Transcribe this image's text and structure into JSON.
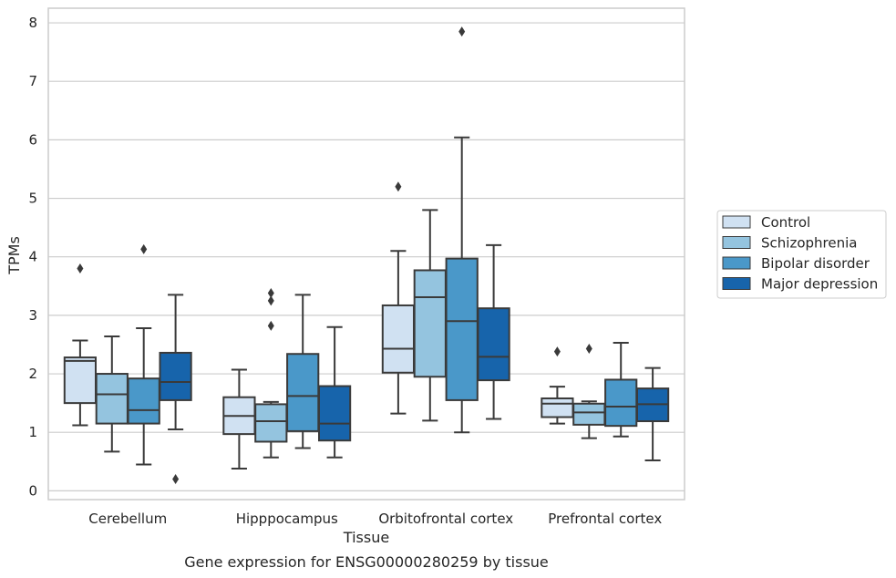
{
  "caption": "Gene expression for ENSG00000280259 by tissue",
  "colors": {
    "Control": "#d0e1f2",
    "Schizophrenia": "#94c4df",
    "Bipolar disorder": "#4a98c9",
    "Major depression": "#1764ab",
    "box_edge": "#3a3a3a",
    "grid": "#cccccc",
    "frame": "#cccccc"
  },
  "chart_data": {
    "type": "box",
    "xlabel": "Tissue",
    "ylabel": "TPMs",
    "ylim": [
      -0.15,
      8.25
    ],
    "yticks": [
      0,
      1,
      2,
      3,
      4,
      5,
      6,
      7,
      8
    ],
    "grid": "horizontal",
    "legend_position": "right",
    "categories": [
      "Cerebellum",
      "Hipppocampus",
      "Orbitofrontal cortex",
      "Prefrontal cortex"
    ],
    "series": [
      {
        "name": "Control",
        "boxes": [
          {
            "whislo": 1.12,
            "q1": 1.5,
            "med": 2.22,
            "q3": 2.28,
            "whishi": 2.57,
            "fliers": [
              3.8
            ]
          },
          {
            "whislo": 0.38,
            "q1": 0.97,
            "med": 1.28,
            "q3": 1.6,
            "whishi": 2.07,
            "fliers": []
          },
          {
            "whislo": 1.32,
            "q1": 2.02,
            "med": 2.43,
            "q3": 3.17,
            "whishi": 4.1,
            "fliers": [
              5.2
            ]
          },
          {
            "whislo": 1.15,
            "q1": 1.26,
            "med": 1.49,
            "q3": 1.58,
            "whishi": 1.78,
            "fliers": [
              2.38
            ]
          }
        ]
      },
      {
        "name": "Schizophrenia",
        "boxes": [
          {
            "whislo": 0.67,
            "q1": 1.15,
            "med": 1.65,
            "q3": 2.0,
            "whishi": 2.64,
            "fliers": []
          },
          {
            "whislo": 0.57,
            "q1": 0.84,
            "med": 1.19,
            "q3": 1.48,
            "whishi": 1.52,
            "fliers": [
              2.82,
              3.25,
              3.38
            ]
          },
          {
            "whislo": 1.2,
            "q1": 1.95,
            "med": 3.31,
            "q3": 3.77,
            "whishi": 4.8,
            "fliers": []
          },
          {
            "whislo": 0.9,
            "q1": 1.13,
            "med": 1.34,
            "q3": 1.49,
            "whishi": 1.53,
            "fliers": [
              2.43
            ]
          }
        ]
      },
      {
        "name": "Bipolar disorder",
        "boxes": [
          {
            "whislo": 0.45,
            "q1": 1.15,
            "med": 1.38,
            "q3": 1.92,
            "whishi": 2.78,
            "fliers": [
              4.13
            ]
          },
          {
            "whislo": 0.73,
            "q1": 1.02,
            "med": 1.62,
            "q3": 2.34,
            "whishi": 3.35,
            "fliers": []
          },
          {
            "whislo": 1.0,
            "q1": 1.55,
            "med": 2.9,
            "q3": 3.97,
            "whishi": 6.04,
            "fliers": [
              7.85
            ]
          },
          {
            "whislo": 0.93,
            "q1": 1.11,
            "med": 1.44,
            "q3": 1.9,
            "whishi": 2.53,
            "fliers": []
          }
        ]
      },
      {
        "name": "Major depression",
        "boxes": [
          {
            "whislo": 1.05,
            "q1": 1.55,
            "med": 1.86,
            "q3": 2.36,
            "whishi": 3.35,
            "fliers": [
              0.2
            ]
          },
          {
            "whislo": 0.57,
            "q1": 0.86,
            "med": 1.15,
            "q3": 1.79,
            "whishi": 2.8,
            "fliers": []
          },
          {
            "whislo": 1.23,
            "q1": 1.89,
            "med": 2.29,
            "q3": 3.12,
            "whishi": 4.2,
            "fliers": []
          },
          {
            "whislo": 0.52,
            "q1": 1.19,
            "med": 1.48,
            "q3": 1.75,
            "whishi": 2.1,
            "fliers": []
          }
        ]
      }
    ]
  }
}
